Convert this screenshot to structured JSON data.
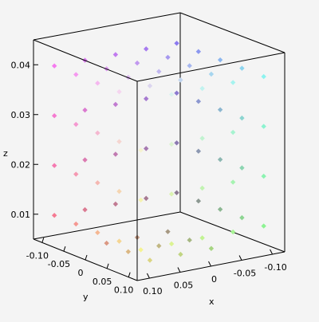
{
  "chart_data": {
    "type": "scatter",
    "title": "",
    "xlabel": "x",
    "ylabel": "y",
    "zlabel": "z",
    "xlim": [
      -0.12,
      0.12
    ],
    "ylim": [
      -0.12,
      0.12
    ],
    "zlim": [
      0.005,
      0.045
    ],
    "x_ticks": [
      "0.10",
      "0.05",
      "0",
      "-0.05",
      "-0.10"
    ],
    "y_ticks": [
      "-0.10",
      "-0.05",
      "0",
      "0.05",
      "0.10"
    ],
    "z_ticks": [
      "0.01",
      "0.02",
      "0.03",
      "0.04"
    ],
    "grid": false,
    "box": true,
    "marker": "diamond",
    "coloring": "rgb mapped from position",
    "points": [
      {
        "x": 0.1,
        "y": -0.1,
        "z": 0.04
      },
      {
        "x": 0.05,
        "y": -0.1,
        "z": 0.04
      },
      {
        "x": 0.0,
        "y": -0.1,
        "z": 0.04
      },
      {
        "x": -0.05,
        "y": -0.1,
        "z": 0.04
      },
      {
        "x": -0.1,
        "y": -0.1,
        "z": 0.04
      },
      {
        "x": -0.1,
        "y": -0.05,
        "z": 0.04
      },
      {
        "x": -0.1,
        "y": 0.0,
        "z": 0.04
      },
      {
        "x": -0.1,
        "y": 0.05,
        "z": 0.04
      },
      {
        "x": -0.1,
        "y": 0.1,
        "z": 0.04
      },
      {
        "x": 0.1,
        "y": -0.05,
        "z": 0.04
      },
      {
        "x": 0.1,
        "y": 0.0,
        "z": 0.04
      },
      {
        "x": 0.1,
        "y": 0.05,
        "z": 0.04
      },
      {
        "x": 0.1,
        "y": 0.1,
        "z": 0.04
      },
      {
        "x": 0.05,
        "y": 0.1,
        "z": 0.04
      },
      {
        "x": 0.0,
        "y": 0.1,
        "z": 0.04
      },
      {
        "x": -0.05,
        "y": 0.1,
        "z": 0.04
      },
      {
        "x": 0.1,
        "y": -0.1,
        "z": 0.03
      },
      {
        "x": 0.05,
        "y": -0.1,
        "z": 0.03
      },
      {
        "x": 0.0,
        "y": -0.1,
        "z": 0.03
      },
      {
        "x": -0.05,
        "y": -0.1,
        "z": 0.03
      },
      {
        "x": -0.1,
        "y": -0.1,
        "z": 0.03
      },
      {
        "x": -0.1,
        "y": -0.05,
        "z": 0.03
      },
      {
        "x": -0.1,
        "y": 0.0,
        "z": 0.03
      },
      {
        "x": -0.1,
        "y": 0.05,
        "z": 0.03
      },
      {
        "x": -0.1,
        "y": 0.1,
        "z": 0.03
      },
      {
        "x": 0.1,
        "y": -0.05,
        "z": 0.03
      },
      {
        "x": 0.1,
        "y": 0.0,
        "z": 0.03
      },
      {
        "x": 0.1,
        "y": 0.05,
        "z": 0.03
      },
      {
        "x": 0.1,
        "y": 0.1,
        "z": 0.03
      },
      {
        "x": 0.05,
        "y": 0.1,
        "z": 0.03
      },
      {
        "x": 0.0,
        "y": 0.1,
        "z": 0.03
      },
      {
        "x": -0.05,
        "y": 0.1,
        "z": 0.03
      },
      {
        "x": 0.1,
        "y": -0.1,
        "z": 0.02
      },
      {
        "x": 0.05,
        "y": -0.1,
        "z": 0.02
      },
      {
        "x": 0.0,
        "y": -0.1,
        "z": 0.02
      },
      {
        "x": -0.05,
        "y": -0.1,
        "z": 0.02
      },
      {
        "x": -0.1,
        "y": -0.1,
        "z": 0.02
      },
      {
        "x": -0.1,
        "y": -0.05,
        "z": 0.02
      },
      {
        "x": -0.1,
        "y": 0.0,
        "z": 0.02
      },
      {
        "x": -0.1,
        "y": 0.05,
        "z": 0.02
      },
      {
        "x": -0.1,
        "y": 0.1,
        "z": 0.02
      },
      {
        "x": 0.1,
        "y": -0.05,
        "z": 0.02
      },
      {
        "x": 0.1,
        "y": 0.0,
        "z": 0.02
      },
      {
        "x": 0.1,
        "y": 0.05,
        "z": 0.02
      },
      {
        "x": 0.1,
        "y": 0.1,
        "z": 0.02
      },
      {
        "x": 0.05,
        "y": 0.1,
        "z": 0.02
      },
      {
        "x": 0.0,
        "y": 0.1,
        "z": 0.02
      },
      {
        "x": -0.05,
        "y": 0.1,
        "z": 0.02
      },
      {
        "x": 0.1,
        "y": -0.1,
        "z": 0.01
      },
      {
        "x": 0.05,
        "y": -0.1,
        "z": 0.01
      },
      {
        "x": 0.0,
        "y": -0.1,
        "z": 0.01
      },
      {
        "x": -0.05,
        "y": -0.1,
        "z": 0.01
      },
      {
        "x": -0.1,
        "y": -0.1,
        "z": 0.01
      },
      {
        "x": -0.1,
        "y": -0.05,
        "z": 0.01
      },
      {
        "x": -0.1,
        "y": 0.0,
        "z": 0.01
      },
      {
        "x": -0.1,
        "y": 0.05,
        "z": 0.01
      },
      {
        "x": -0.1,
        "y": 0.1,
        "z": 0.01
      },
      {
        "x": 0.1,
        "y": -0.05,
        "z": 0.01
      },
      {
        "x": 0.1,
        "y": 0.0,
        "z": 0.01
      },
      {
        "x": 0.1,
        "y": 0.05,
        "z": 0.01
      },
      {
        "x": 0.1,
        "y": 0.1,
        "z": 0.01
      },
      {
        "x": 0.05,
        "y": 0.1,
        "z": 0.01
      },
      {
        "x": 0.0,
        "y": 0.1,
        "z": 0.01
      },
      {
        "x": -0.05,
        "y": 0.1,
        "z": 0.01
      },
      {
        "x": 0.05,
        "y": -0.05,
        "z": 0.005
      },
      {
        "x": 0.0,
        "y": -0.05,
        "z": 0.005
      },
      {
        "x": -0.05,
        "y": -0.05,
        "z": 0.005
      },
      {
        "x": 0.05,
        "y": 0.0,
        "z": 0.005
      },
      {
        "x": 0.0,
        "y": 0.0,
        "z": 0.005
      },
      {
        "x": -0.05,
        "y": 0.0,
        "z": 0.005
      },
      {
        "x": 0.05,
        "y": 0.05,
        "z": 0.005
      },
      {
        "x": 0.0,
        "y": 0.05,
        "z": 0.005
      },
      {
        "x": -0.05,
        "y": 0.05,
        "z": 0.005
      },
      {
        "x": 0.05,
        "y": -0.05,
        "z": 0.04
      },
      {
        "x": 0.0,
        "y": -0.05,
        "z": 0.04
      },
      {
        "x": -0.05,
        "y": -0.05,
        "z": 0.04
      },
      {
        "x": 0.05,
        "y": 0.0,
        "z": 0.04
      },
      {
        "x": 0.0,
        "y": 0.0,
        "z": 0.04
      },
      {
        "x": -0.05,
        "y": 0.0,
        "z": 0.04
      },
      {
        "x": 0.05,
        "y": 0.05,
        "z": 0.04
      },
      {
        "x": 0.0,
        "y": 0.05,
        "z": 0.04
      },
      {
        "x": -0.05,
        "y": 0.05,
        "z": 0.04
      }
    ]
  }
}
